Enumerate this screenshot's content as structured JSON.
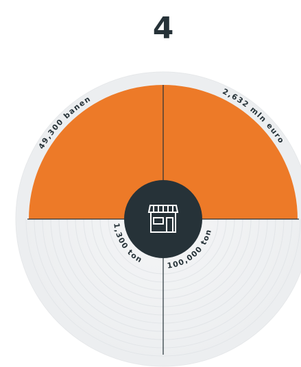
{
  "header": {
    "title": "4"
  },
  "segments": [
    {
      "label": "49,300 banen"
    },
    {
      "label": "2,632 mln euro"
    },
    {
      "label": "1,300 ton"
    },
    {
      "label": "100,000 ton"
    }
  ]
}
